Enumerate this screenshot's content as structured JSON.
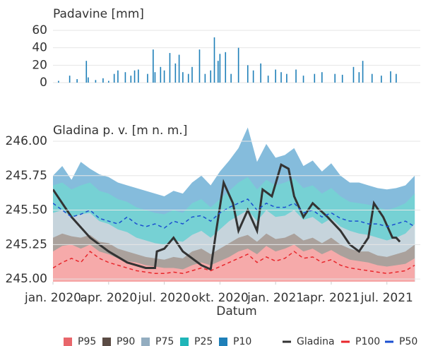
{
  "chart_data": [
    {
      "type": "bar",
      "title": "Padavine [mm]",
      "color": "#1e7fb8",
      "xlim": [
        0,
        19.8
      ],
      "ylim": [
        0,
        60
      ],
      "yticks": [
        0,
        20,
        40,
        60
      ],
      "grid": true,
      "x": [
        0.3,
        0.9,
        1.3,
        1.8,
        1.9,
        2.3,
        2.7,
        3.0,
        3.3,
        3.5,
        3.9,
        4.2,
        4.4,
        4.6,
        5.1,
        5.4,
        5.5,
        5.8,
        6.0,
        6.3,
        6.6,
        6.8,
        7.0,
        7.3,
        7.5,
        7.9,
        8.2,
        8.5,
        8.7,
        8.9,
        9.0,
        9.3,
        9.6,
        10.0,
        10.5,
        10.8,
        11.2,
        11.6,
        12.0,
        12.3,
        12.6,
        13.1,
        13.5,
        14.1,
        14.5,
        15.2,
        15.6,
        16.2,
        16.5,
        16.7,
        17.2,
        17.7,
        18.2,
        18.5
      ],
      "values": [
        2,
        8,
        4,
        25,
        6,
        3,
        5,
        2,
        10,
        14,
        12,
        8,
        14,
        15,
        10,
        38,
        12,
        18,
        14,
        34,
        22,
        32,
        12,
        10,
        18,
        38,
        10,
        14,
        52,
        25,
        33,
        35,
        10,
        40,
        20,
        14,
        22,
        8,
        15,
        12,
        10,
        15,
        8,
        10,
        12,
        10,
        9,
        18,
        12,
        25,
        10,
        8,
        13,
        10
      ]
    },
    {
      "type": "area",
      "title": "Gladina p. v. [m n. m.]",
      "xlabel": "Datum",
      "xlim": [
        0,
        19.8
      ],
      "ylim": [
        244.98,
        246.1
      ],
      "xticks": [
        {
          "value": 0,
          "label": "jan. 2020"
        },
        {
          "value": 3,
          "label": "apr. 2020"
        },
        {
          "value": 6,
          "label": "jul. 2020"
        },
        {
          "value": 9,
          "label": "okt. 2020"
        },
        {
          "value": 12,
          "label": "jan. 2021"
        },
        {
          "value": 15,
          "label": "apr. 2021"
        },
        {
          "value": 18,
          "label": "jul. 2021"
        }
      ],
      "yticks": [
        {
          "value": 245,
          "label": "245.00"
        },
        245.25,
        {
          "value": 245.5,
          "label": "245.50"
        },
        245.75,
        {
          "value": 246,
          "label": "246.00"
        }
      ],
      "grid": true,
      "x": [
        0,
        0.5,
        1,
        1.5,
        2,
        2.5,
        3,
        3.5,
        4,
        4.5,
        5,
        5.5,
        6,
        6.5,
        7,
        7.5,
        8,
        8.5,
        9,
        9.5,
        10,
        10.5,
        11,
        11.5,
        12,
        12.5,
        13,
        13.5,
        14,
        14.5,
        15,
        15.5,
        16,
        16.5,
        17,
        17.5,
        18,
        18.5,
        19,
        19.5
      ],
      "series": [
        {
          "name": "P95",
          "mode": "fill",
          "color": "#e8666b",
          "fill": "#f6aaaa",
          "values": [
            245.2,
            245.24,
            245.25,
            245.22,
            245.25,
            245.2,
            245.18,
            245.15,
            245.13,
            245.12,
            245.1,
            245.09,
            245.08,
            245.08,
            245.07,
            245.1,
            245.12,
            245.1,
            245.13,
            245.16,
            245.2,
            245.22,
            245.18,
            245.24,
            245.2,
            245.22,
            245.25,
            245.2,
            245.22,
            245.18,
            245.21,
            245.17,
            245.14,
            245.13,
            245.12,
            245.1,
            245.09,
            245.1,
            245.11,
            245.15
          ]
        },
        {
          "name": "P90",
          "mode": "fill",
          "color": "#5b4b44",
          "fill": "#aaa19c",
          "values": [
            245.3,
            245.33,
            245.31,
            245.3,
            245.32,
            245.27,
            245.26,
            245.22,
            245.2,
            245.18,
            245.16,
            245.15,
            245.14,
            245.16,
            245.15,
            245.2,
            245.22,
            245.18,
            245.22,
            245.26,
            245.3,
            245.32,
            245.27,
            245.33,
            245.29,
            245.3,
            245.33,
            245.28,
            245.3,
            245.26,
            245.3,
            245.25,
            245.22,
            245.2,
            245.2,
            245.17,
            245.16,
            245.18,
            245.2,
            245.25
          ]
        },
        {
          "name": "P75",
          "mode": "fill",
          "color": "#93adc0",
          "fill": "#c6d4dc",
          "values": [
            245.48,
            245.5,
            245.45,
            245.47,
            245.48,
            245.42,
            245.4,
            245.36,
            245.34,
            245.3,
            245.28,
            245.26,
            245.25,
            245.28,
            245.27,
            245.32,
            245.35,
            245.3,
            245.36,
            245.42,
            245.46,
            245.5,
            245.42,
            245.5,
            245.45,
            245.46,
            245.5,
            245.43,
            245.45,
            245.4,
            245.44,
            245.38,
            245.35,
            245.33,
            245.32,
            245.3,
            245.28,
            245.3,
            245.33,
            245.4
          ]
        },
        {
          "name": "P25",
          "mode": "fill",
          "color": "#1fb5b8",
          "fill": "#76d1d4",
          "values": [
            245.68,
            245.7,
            245.65,
            245.68,
            245.7,
            245.64,
            245.62,
            245.58,
            245.56,
            245.52,
            245.5,
            245.48,
            245.47,
            245.5,
            245.48,
            245.55,
            245.58,
            245.52,
            245.58,
            245.64,
            245.7,
            245.74,
            245.65,
            245.72,
            245.68,
            245.7,
            245.73,
            245.66,
            245.68,
            245.62,
            245.66,
            245.6,
            245.56,
            245.55,
            245.54,
            245.52,
            245.5,
            245.52,
            245.55,
            245.62
          ]
        },
        {
          "name": "P10",
          "mode": "fill",
          "color": "#1e7fb8",
          "fill": "#85bcdc",
          "values": [
            245.75,
            245.82,
            245.72,
            245.85,
            245.8,
            245.76,
            245.74,
            245.7,
            245.68,
            245.66,
            245.64,
            245.62,
            245.6,
            245.64,
            245.62,
            245.7,
            245.75,
            245.68,
            245.78,
            245.86,
            245.95,
            246.1,
            245.85,
            245.98,
            245.88,
            245.9,
            245.95,
            245.82,
            245.86,
            245.78,
            245.84,
            245.75,
            245.7,
            245.7,
            245.68,
            245.66,
            245.65,
            245.66,
            245.68,
            245.75
          ]
        },
        {
          "name": "Gladina",
          "mode": "line",
          "color": "#333333",
          "dash": false,
          "x": [
            0,
            1,
            2,
            3,
            4,
            5,
            5.5,
            5.6,
            6,
            6.5,
            7,
            8,
            8.5,
            8.8,
            9.2,
            9.7,
            10,
            10.5,
            11,
            11.3,
            11.8,
            12.3,
            12.7,
            13,
            13.5,
            14,
            14.8,
            15.5,
            16,
            16.5,
            17,
            17.3,
            17.8,
            18.3,
            18.5,
            18.7
          ],
          "values": [
            245.65,
            245.45,
            245.3,
            245.2,
            245.12,
            245.08,
            245.08,
            245.2,
            245.22,
            245.3,
            245.2,
            245.1,
            245.07,
            245.35,
            245.7,
            245.55,
            245.35,
            245.5,
            245.35,
            245.65,
            245.6,
            245.83,
            245.8,
            245.6,
            245.45,
            245.55,
            245.45,
            245.35,
            245.25,
            245.2,
            245.3,
            245.55,
            245.45,
            245.3,
            245.3,
            245.27
          ]
        },
        {
          "name": "P100",
          "mode": "line",
          "color": "#e8262b",
          "dash": true,
          "values": [
            245.08,
            245.12,
            245.15,
            245.12,
            245.2,
            245.15,
            245.12,
            245.1,
            245.08,
            245.06,
            245.05,
            245.04,
            245.04,
            245.05,
            245.04,
            245.06,
            245.08,
            245.06,
            245.09,
            245.12,
            245.15,
            245.18,
            245.12,
            245.16,
            245.13,
            245.15,
            245.2,
            245.15,
            245.16,
            245.12,
            245.14,
            245.1,
            245.08,
            245.07,
            245.06,
            245.05,
            245.04,
            245.05,
            245.06,
            245.1
          ]
        },
        {
          "name": "P50",
          "mode": "line",
          "color": "#1a4fd0",
          "dash": true,
          "values": [
            245.55,
            245.5,
            245.45,
            245.47,
            245.5,
            245.44,
            245.42,
            245.4,
            245.45,
            245.4,
            245.38,
            245.4,
            245.37,
            245.42,
            245.4,
            245.45,
            245.46,
            245.42,
            245.48,
            245.52,
            245.55,
            245.58,
            245.5,
            245.55,
            245.52,
            245.52,
            245.55,
            245.48,
            245.5,
            245.45,
            245.48,
            245.44,
            245.42,
            245.42,
            245.4,
            245.4,
            245.38,
            245.4,
            245.42,
            245.38
          ]
        }
      ]
    }
  ]
}
